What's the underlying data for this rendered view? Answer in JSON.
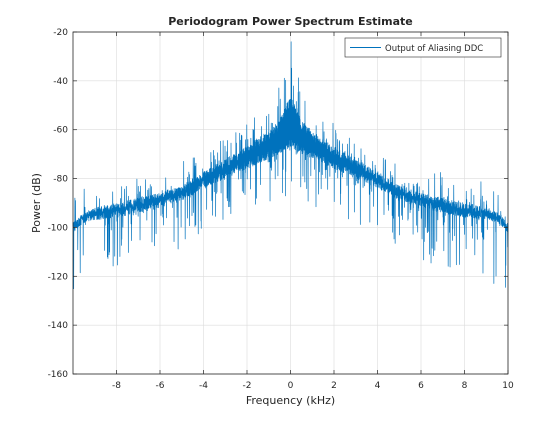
{
  "chart_data": {
    "type": "line",
    "title": "Periodogram Power Spectrum Estimate",
    "xlabel": "Frequency (kHz)",
    "ylabel": "Power (dB)",
    "xlim": [
      -10,
      10
    ],
    "ylim": [
      -160,
      -20
    ],
    "x_ticks": [
      -8,
      -6,
      -4,
      -2,
      0,
      2,
      4,
      6,
      8,
      10
    ],
    "y_ticks": [
      -20,
      -40,
      -60,
      -80,
      -100,
      -120,
      -140,
      -160
    ],
    "grid": true,
    "legend_position": "top-right",
    "series": [
      {
        "name": "Output of Aliasing DDC",
        "color": "#0072BD",
        "envelope": {
          "x": [
            -10,
            -9.5,
            -9,
            -8,
            -7,
            -6,
            -5,
            -4,
            -3,
            -2,
            -1.5,
            -1,
            -0.5,
            -0.2,
            0,
            0.2,
            0.5,
            1,
            1.5,
            2,
            3,
            4,
            5,
            6,
            7,
            8,
            9,
            9.5,
            10
          ],
          "upper": [
            -86,
            -82,
            -80,
            -78,
            -76,
            -76,
            -73,
            -67,
            -63,
            -57,
            -53,
            -48,
            -38,
            -28,
            -23,
            -28,
            -38,
            -48,
            -53,
            -57,
            -63,
            -67,
            -73,
            -76,
            -76,
            -78,
            -80,
            -82,
            -88
          ],
          "band_top": [
            -98,
            -94,
            -92,
            -90,
            -88,
            -86,
            -83,
            -77,
            -72,
            -67,
            -64,
            -61,
            -56,
            -50,
            -46,
            -50,
            -56,
            -61,
            -64,
            -67,
            -72,
            -77,
            -83,
            -86,
            -88,
            -90,
            -92,
            -94,
            -98
          ],
          "band_bottom": [
            -102,
            -98,
            -97,
            -96,
            -94,
            -92,
            -89,
            -84,
            -80,
            -76,
            -74,
            -72,
            -70,
            -68,
            -67,
            -68,
            -70,
            -72,
            -74,
            -76,
            -80,
            -84,
            -89,
            -92,
            -94,
            -96,
            -97,
            -98,
            -102
          ],
          "lower": [
            -138,
            -124,
            -122,
            -120,
            -118,
            -114,
            -108,
            -102,
            -98,
            -96,
            -94,
            -92,
            -90,
            -88,
            -86,
            -88,
            -90,
            -92,
            -94,
            -96,
            -98,
            -102,
            -108,
            -114,
            -118,
            -120,
            -122,
            -124,
            -140
          ]
        }
      }
    ]
  }
}
